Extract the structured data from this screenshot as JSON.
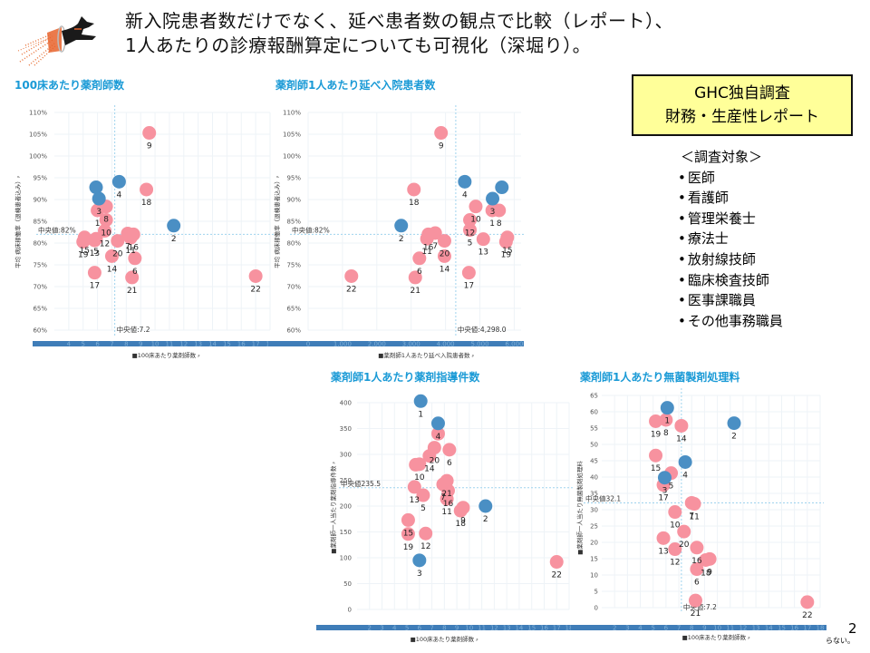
{
  "headline": {
    "line1": "新入院患者数だけでなく、延べ患者数の観点で比較（レポート）、",
    "line2": "1人あたりの診療報酬算定についても可視化（深堀り）。"
  },
  "info_box": {
    "line1": "GHC独自調査",
    "line2": "財務・生産性レポート"
  },
  "survey_targets": {
    "heading": "＜調査対象＞",
    "items": [
      "医師",
      "看護師",
      "管理栄養士",
      "療法士",
      "放射線技師",
      "臨床検査技師",
      "医事課職員",
      "その他事務職員"
    ]
  },
  "page_number": "2",
  "cutoff_text": "らない。",
  "colors": {
    "highlight": "#4a8fc4",
    "others": "#f7929f",
    "title": "#1a9ad6",
    "axis_bar": "#3f7db8"
  },
  "chart_data": [
    {
      "type": "scatter",
      "title": "100床あたり薬剤師数",
      "xlabel": "■100床あたり薬剤師数 ⸗",
      "ylabel": "平均 病床稼働率（退棟患者込み）⸗",
      "xlim": [
        3,
        18
      ],
      "ylim": [
        60,
        110
      ],
      "x_ticks": [
        4,
        5,
        6,
        7,
        8,
        9,
        10,
        11,
        12,
        13,
        14,
        15,
        16,
        17,
        18
      ],
      "y_ticks": [
        "60%",
        "65%",
        "70%",
        "75%",
        "80%",
        "85%",
        "90%",
        "95%",
        "100%",
        "105%",
        "110%"
      ],
      "y_tick_values": [
        60,
        65,
        70,
        75,
        80,
        85,
        90,
        95,
        100,
        105,
        110
      ],
      "median_x": 7.2,
      "median_x_label": "中央値:7.2",
      "median_y": 82,
      "median_y_label": "中央値:82%",
      "points": [
        {
          "id": "1",
          "x": 6.0,
          "y": 87.5,
          "hl": false
        },
        {
          "id": "2",
          "x": 11.3,
          "y": 84.0,
          "hl": true
        },
        {
          "id": "3",
          "x": 6.1,
          "y": 90.2,
          "hl": true
        },
        {
          "id": "3b",
          "x": 5.9,
          "y": 92.8,
          "hl": true,
          "nolabel": true
        },
        {
          "id": "4",
          "x": 7.5,
          "y": 94.1,
          "hl": true
        },
        {
          "id": "5",
          "x": 5.9,
          "y": 81.0,
          "hl": false
        },
        {
          "id": "6",
          "x": 8.6,
          "y": 76.5,
          "hl": false
        },
        {
          "id": "7",
          "x": 8.1,
          "y": 82.2,
          "hl": false
        },
        {
          "id": "8",
          "x": 6.6,
          "y": 88.4,
          "hl": false
        },
        {
          "id": "9",
          "x": 9.6,
          "y": 105.3,
          "hl": false
        },
        {
          "id": "10",
          "x": 6.6,
          "y": 85.3,
          "hl": false
        },
        {
          "id": "11",
          "x": 8.3,
          "y": 81.2,
          "hl": false
        },
        {
          "id": "12",
          "x": 6.5,
          "y": 82.8,
          "hl": false
        },
        {
          "id": "13",
          "x": 5.8,
          "y": 80.6,
          "hl": false
        },
        {
          "id": "14",
          "x": 7.0,
          "y": 77.0,
          "hl": false
        },
        {
          "id": "15",
          "x": 5.1,
          "y": 81.3,
          "hl": false
        },
        {
          "id": "16",
          "x": 8.5,
          "y": 82.0,
          "hl": false
        },
        {
          "id": "17",
          "x": 5.8,
          "y": 73.2,
          "hl": false
        },
        {
          "id": "18",
          "x": 9.4,
          "y": 92.3,
          "hl": false
        },
        {
          "id": "19",
          "x": 5.0,
          "y": 80.3,
          "hl": false
        },
        {
          "id": "20",
          "x": 7.4,
          "y": 80.5,
          "hl": false
        },
        {
          "id": "21",
          "x": 8.4,
          "y": 72.1,
          "hl": false
        },
        {
          "id": "22",
          "x": 17.0,
          "y": 72.4,
          "hl": false
        }
      ]
    },
    {
      "type": "scatter",
      "title": "薬剤師1人あたり延べ入院患者数",
      "xlabel": "■薬剤師1人あたり延べ入院患者数 ⸗",
      "ylabel": "平均 病床稼働率（退棟患者込み）⸗",
      "xlim": [
        0,
        6200
      ],
      "ylim": [
        60,
        110
      ],
      "x_ticks": [
        "0",
        "1,000",
        "2,000",
        "3,000",
        "4,000",
        "5,000",
        "6,000"
      ],
      "x_tick_values": [
        0,
        1000,
        2000,
        3000,
        4000,
        5000,
        6000
      ],
      "y_ticks": [
        "60%",
        "65%",
        "70%",
        "75%",
        "80%",
        "85%",
        "90%",
        "95%",
        "100%",
        "105%",
        "110%"
      ],
      "y_tick_values": [
        60,
        65,
        70,
        75,
        80,
        85,
        90,
        95,
        100,
        105,
        110
      ],
      "median_x": 4298.0,
      "median_x_label": "中央値:4,298.0",
      "median_y": 82,
      "median_y_label": "中央値:82%",
      "points": [
        {
          "id": "1",
          "x": 5360,
          "y": 87.5,
          "hl": false
        },
        {
          "id": "2",
          "x": 2710,
          "y": 84.0,
          "hl": true
        },
        {
          "id": "3",
          "x": 5370,
          "y": 90.2,
          "hl": true
        },
        {
          "id": "3b",
          "x": 5640,
          "y": 92.8,
          "hl": true,
          "nolabel": true
        },
        {
          "id": "4",
          "x": 4560,
          "y": 94.1,
          "hl": true
        },
        {
          "id": "5",
          "x": 4710,
          "y": 83.0,
          "hl": false
        },
        {
          "id": "6",
          "x": 3240,
          "y": 76.5,
          "hl": false
        },
        {
          "id": "7",
          "x": 3700,
          "y": 82.3,
          "hl": false
        },
        {
          "id": "8",
          "x": 5560,
          "y": 87.5,
          "hl": false
        },
        {
          "id": "9",
          "x": 3870,
          "y": 105.3,
          "hl": false
        },
        {
          "id": "10",
          "x": 4880,
          "y": 88.4,
          "hl": false
        },
        {
          "id": "11",
          "x": 3460,
          "y": 81.0,
          "hl": false
        },
        {
          "id": "12",
          "x": 4710,
          "y": 85.3,
          "hl": false
        },
        {
          "id": "13",
          "x": 5100,
          "y": 80.9,
          "hl": false
        },
        {
          "id": "14",
          "x": 3970,
          "y": 77.0,
          "hl": false
        },
        {
          "id": "15",
          "x": 5800,
          "y": 81.3,
          "hl": false
        },
        {
          "id": "16",
          "x": 3500,
          "y": 82.0,
          "hl": false
        },
        {
          "id": "17",
          "x": 4680,
          "y": 73.2,
          "hl": false
        },
        {
          "id": "18",
          "x": 3080,
          "y": 92.3,
          "hl": false
        },
        {
          "id": "19",
          "x": 5760,
          "y": 80.3,
          "hl": false
        },
        {
          "id": "20",
          "x": 3970,
          "y": 80.5,
          "hl": false
        },
        {
          "id": "21",
          "x": 3120,
          "y": 72.1,
          "hl": false
        },
        {
          "id": "22",
          "x": 1260,
          "y": 72.4,
          "hl": false
        }
      ]
    },
    {
      "type": "scatter",
      "title": "薬剤師1人あたり薬剤指導件数",
      "xlabel": "■100床あたり薬剤師数 ⸗",
      "ylabel": "■薬剤師一人当たり薬剤指導件数 ⸗",
      "xlim": [
        1,
        18
      ],
      "ylim": [
        0,
        400
      ],
      "x_ticks": [
        2,
        3,
        4,
        5,
        6,
        7,
        8,
        9,
        10,
        11,
        12,
        13,
        14,
        15,
        16,
        17,
        18
      ],
      "y_ticks": [
        "0",
        "50",
        "100",
        "150",
        "200",
        "250",
        "300",
        "350",
        "400"
      ],
      "y_tick_values": [
        0,
        50,
        100,
        150,
        200,
        250,
        300,
        350,
        400
      ],
      "median_y": 235.5,
      "median_y_label": "中央値235.5",
      "points": [
        {
          "id": "1",
          "x": 6.1,
          "y": 403,
          "hl": true
        },
        {
          "id": "2",
          "x": 11.3,
          "y": 200,
          "hl": true
        },
        {
          "id": "3",
          "x": 6.0,
          "y": 95,
          "hl": true
        },
        {
          "id": "4",
          "x": 7.5,
          "y": 360,
          "hl": true
        },
        {
          "id": "4b",
          "x": 7.5,
          "y": 340,
          "hl": false,
          "nolabel": true
        },
        {
          "id": "5",
          "x": 6.3,
          "y": 221,
          "hl": false
        },
        {
          "id": "6",
          "x": 8.4,
          "y": 309,
          "hl": false
        },
        {
          "id": "7",
          "x": 7.9,
          "y": 242,
          "hl": false
        },
        {
          "id": "8",
          "x": 5.7,
          "y": 280,
          "hl": false,
          "nolabel": true
        },
        {
          "id": "9",
          "x": 9.5,
          "y": 197,
          "hl": false
        },
        {
          "id": "10",
          "x": 6.0,
          "y": 281,
          "hl": false
        },
        {
          "id": "11",
          "x": 8.2,
          "y": 214,
          "hl": false
        },
        {
          "id": "12",
          "x": 6.5,
          "y": 147,
          "hl": false
        },
        {
          "id": "13",
          "x": 5.6,
          "y": 237,
          "hl": false
        },
        {
          "id": "14",
          "x": 6.8,
          "y": 297,
          "hl": false
        },
        {
          "id": "15",
          "x": 5.1,
          "y": 173,
          "hl": false
        },
        {
          "id": "16",
          "x": 8.3,
          "y": 230,
          "hl": false
        },
        {
          "id": "17",
          "x": 8.1,
          "y": 245,
          "hl": false,
          "nolabel": true
        },
        {
          "id": "18",
          "x": 9.3,
          "y": 191,
          "hl": false
        },
        {
          "id": "19",
          "x": 5.1,
          "y": 146,
          "hl": false
        },
        {
          "id": "20",
          "x": 7.2,
          "y": 313,
          "hl": false
        },
        {
          "id": "21",
          "x": 8.2,
          "y": 249,
          "hl": false
        },
        {
          "id": "22",
          "x": 17.0,
          "y": 92,
          "hl": false
        }
      ]
    },
    {
      "type": "scatter",
      "title": "薬剤師1人あたり無菌製剤処理料",
      "xlabel": "■100床あたり薬剤師数 ⸗",
      "ylabel": "■薬剤師一人当たり無菌製剤処理料",
      "xlim": [
        1,
        18
      ],
      "ylim": [
        0,
        65
      ],
      "x_ticks": [
        2,
        3,
        4,
        5,
        6,
        7,
        8,
        9,
        10,
        11,
        12,
        13,
        14,
        15,
        16,
        17,
        18
      ],
      "y_ticks": [
        "0",
        "5",
        "10",
        "15",
        "20",
        "25",
        "30",
        "35",
        "40",
        "45",
        "50",
        "55",
        "60",
        "65"
      ],
      "y_tick_values": [
        0,
        5,
        10,
        15,
        20,
        25,
        30,
        35,
        40,
        45,
        50,
        55,
        60,
        65
      ],
      "median_x": 7.2,
      "median_x_label": "中央値:7.2",
      "median_y": 32.1,
      "median_y_label": "中央値32.1",
      "points": [
        {
          "id": "1",
          "x": 6.1,
          "y": 61.2,
          "hl": true
        },
        {
          "id": "2",
          "x": 11.3,
          "y": 56.5,
          "hl": true
        },
        {
          "id": "3",
          "x": 5.9,
          "y": 39.8,
          "hl": true
        },
        {
          "id": "4",
          "x": 7.5,
          "y": 44.6,
          "hl": true
        },
        {
          "id": "5",
          "x": 6.4,
          "y": 41.2,
          "hl": false
        },
        {
          "id": "6",
          "x": 8.4,
          "y": 11.8,
          "hl": false
        },
        {
          "id": "7",
          "x": 8.0,
          "y": 32.1,
          "hl": false
        },
        {
          "id": "8",
          "x": 6.0,
          "y": 57.5,
          "hl": false
        },
        {
          "id": "9",
          "x": 9.4,
          "y": 14.9,
          "hl": false
        },
        {
          "id": "10",
          "x": 6.7,
          "y": 29.3,
          "hl": false
        },
        {
          "id": "11",
          "x": 8.2,
          "y": 31.8,
          "hl": false
        },
        {
          "id": "12",
          "x": 6.7,
          "y": 17.9,
          "hl": false
        },
        {
          "id": "13",
          "x": 5.8,
          "y": 21.3,
          "hl": false
        },
        {
          "id": "14",
          "x": 7.2,
          "y": 55.7,
          "hl": false
        },
        {
          "id": "15",
          "x": 5.2,
          "y": 46.6,
          "hl": false
        },
        {
          "id": "16",
          "x": 8.4,
          "y": 18.4,
          "hl": false
        },
        {
          "id": "17",
          "x": 5.8,
          "y": 37.6,
          "hl": false
        },
        {
          "id": "18",
          "x": 9.1,
          "y": 14.6,
          "hl": false
        },
        {
          "id": "19",
          "x": 5.2,
          "y": 57.1,
          "hl": false
        },
        {
          "id": "20",
          "x": 7.4,
          "y": 23.3,
          "hl": false
        },
        {
          "id": "21",
          "x": 8.3,
          "y": 2.2,
          "hl": false
        },
        {
          "id": "22",
          "x": 17.0,
          "y": 1.7,
          "hl": false
        }
      ]
    }
  ]
}
